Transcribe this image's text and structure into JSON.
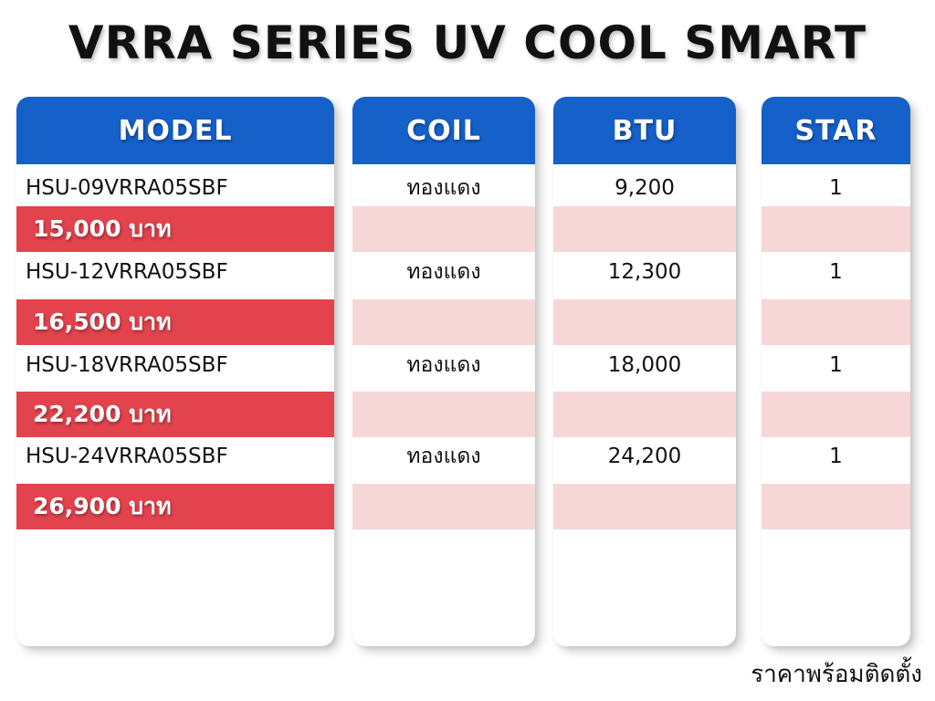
{
  "title": "VRRA SERIES UV COOL SMART",
  "headers": {
    "model": "MODEL",
    "coil": "COIL",
    "btu": "BTU",
    "star": "STAR"
  },
  "rows": [
    {
      "model": "HSU-09VRRA05SBF",
      "coil": "ทองแดง",
      "btu": "9,200",
      "star": "1",
      "price": "15,000 บาท"
    },
    {
      "model": "HSU-12VRRA05SBF",
      "coil": "ทองแดง",
      "btu": "12,300",
      "star": "1",
      "price": "16,500 บาท"
    },
    {
      "model": "HSU-18VRRA05SBF",
      "coil": "ทองแดง",
      "btu": "18,000",
      "star": "1",
      "price": "22,200 บาท"
    },
    {
      "model": "HSU-24VRRA05SBF",
      "coil": "ทองแดง",
      "btu": "24,200",
      "star": "1",
      "price": "26,900 บาท"
    }
  ],
  "footer_note": "ราคาพร้อมติดตั้ง",
  "colors": {
    "header_blue": "#1560c9",
    "price_red": "#e2434d",
    "price_pink": "#f7d6d8"
  }
}
